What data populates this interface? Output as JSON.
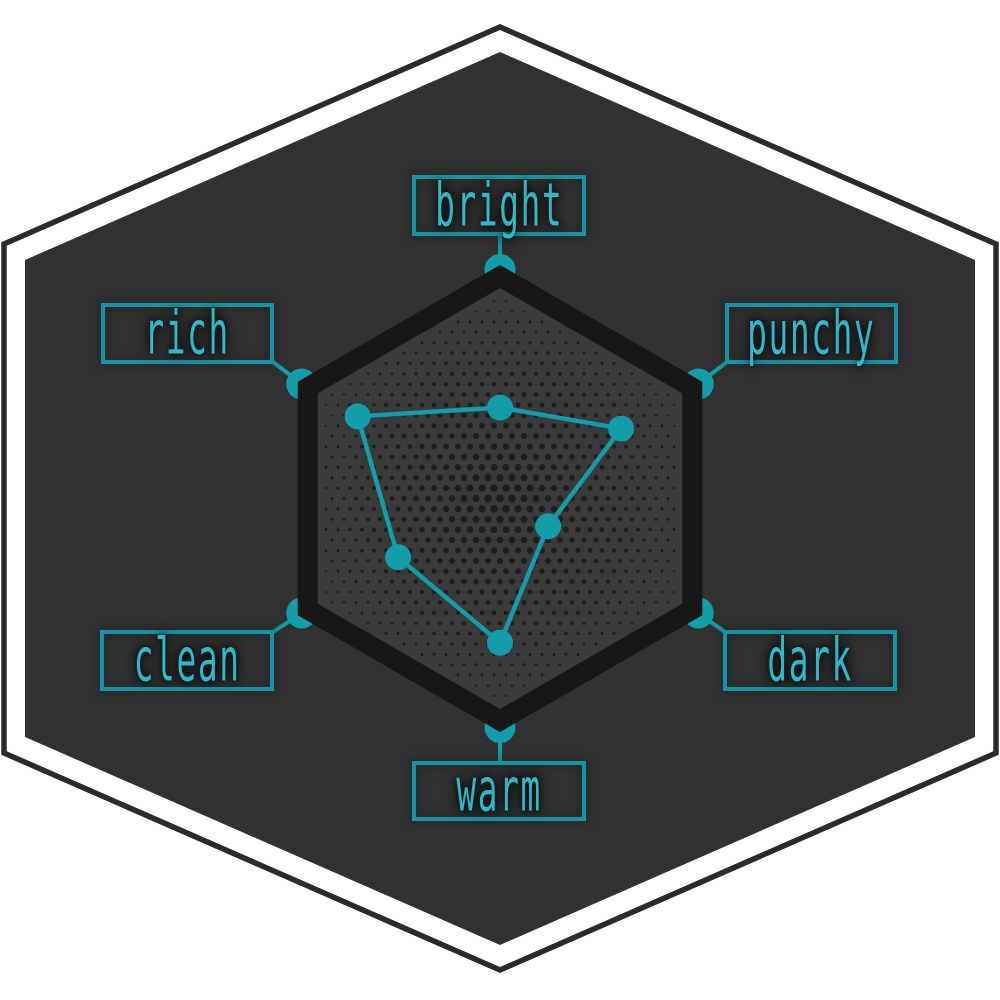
{
  "page": {
    "background_color": "#ffffff"
  },
  "colors": {
    "accent": "#119DA9",
    "label_text": "#2CB9CA",
    "label_border": "#1295A4",
    "outer_hexagon_fill": "#313131",
    "outer_outline_stroke": "#2B2B2B",
    "inner_hexagon_fill": "#3A3A3A",
    "inner_hexagon_border": "#171717",
    "halftone_dot": "#1E1E1E"
  },
  "chart_data": {
    "type": "radar",
    "categories": [
      "BRIGHT",
      "PUNCHY",
      "DARK",
      "WARM",
      "CLEAN",
      "RICH"
    ],
    "values": [
      0.41,
      0.63,
      0.25,
      0.65,
      0.53,
      0.74
    ],
    "value_range": [
      0,
      1
    ],
    "grid": "off",
    "legend": "none",
    "axes_order": "clockwise from top",
    "frame": "hexagon"
  }
}
